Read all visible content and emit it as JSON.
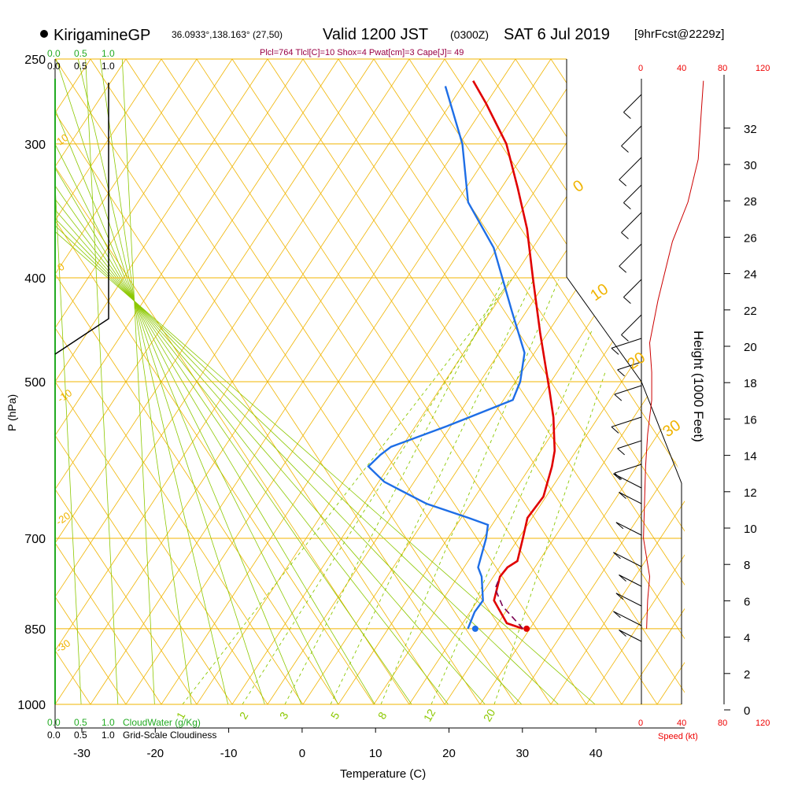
{
  "header": {
    "station": "KirigamineGP",
    "coords": "36.0933°,138.163° (27,50)",
    "valid_label": "Valid 1200 JST",
    "utc": "(0300Z)",
    "date": "SAT 6 Jul 2019",
    "forecast": "[9hrFcst@2229z]",
    "indices": "Plcl=764 Tlcl[C]=10 Shox=4 Pwat[cm]=3 Cape[J]= 49"
  },
  "colors": {
    "isobar": "#f0b400",
    "dry_adiabat": "#f0b400",
    "moist_adiabat": "#8cc800",
    "mixing_ratio": "#8cc800",
    "temperature": "#e00000",
    "dewpoint": "#1e6ee6",
    "parcel": "#7a0050",
    "wind_speed": "#cc0000",
    "cloudwater": "#22aa22",
    "indices": "#990044"
  },
  "chart_data": {
    "type": "line",
    "title": "Valid 1200 JST (0300Z) SAT 6 Jul 2019",
    "xlabel": "Temperature (C)",
    "ylabel": "P (hPa)",
    "y2label": "Height (1000 Feet)",
    "x_ticks": [
      "-30",
      "-20",
      "-10",
      "0",
      "10",
      "20",
      "30",
      "40"
    ],
    "y_ticks": [
      "250",
      "300",
      "400",
      "500",
      "700",
      "850",
      "1000"
    ],
    "height_ticks": [
      "32",
      "30",
      "28",
      "26",
      "24",
      "22",
      "20",
      "18",
      "16",
      "14",
      "12",
      "10",
      "8",
      "6",
      "4",
      "2",
      "0"
    ],
    "dry_adiabat_labels": [
      "10",
      "0",
      "-10",
      "-20",
      "-30",
      "0",
      "10",
      "20",
      "30"
    ],
    "mixing_ratio_labels": [
      "1",
      "2",
      "3",
      "5",
      "8",
      "12",
      "20"
    ],
    "cloud_scale_top": {
      "green": [
        "0.0",
        "0.5",
        "1.0"
      ],
      "black": [
        "0.0",
        "0.5",
        "1.0"
      ]
    },
    "cloud_scale_bottom": {
      "green": [
        "0.0",
        "0.5",
        "1.0"
      ],
      "black": [
        "0.0",
        "0.5",
        "1.0"
      ]
    },
    "cloudwater_label": "CloudWater (g/Kg)",
    "cloudiness_label": "Grid-Scale Cloudiness",
    "wind_speed_ticks": [
      "0",
      "40",
      "80",
      "120"
    ],
    "wind_speed_label": "Speed (kt)",
    "series": [
      {
        "name": "Temperature",
        "points": [
          [
            26.0,
            850
          ],
          [
            23.5,
            840
          ],
          [
            20.5,
            800
          ],
          [
            20.0,
            760
          ],
          [
            20.5,
            745
          ],
          [
            21.5,
            735
          ],
          [
            21.0,
            700
          ],
          [
            20.5,
            670
          ],
          [
            21.5,
            640
          ],
          [
            21.0,
            600
          ],
          [
            20.5,
            580
          ],
          [
            18.5,
            540
          ],
          [
            16.5,
            510
          ],
          [
            12.0,
            450
          ],
          [
            8.0,
            400
          ],
          [
            4.5,
            360
          ],
          [
            1.0,
            330
          ],
          [
            -3.0,
            300
          ],
          [
            -8.0,
            275
          ],
          [
            -11.0,
            262
          ]
        ]
      },
      {
        "name": "Dewpoint",
        "points": [
          [
            18.5,
            850
          ],
          [
            18.5,
            820
          ],
          [
            19.0,
            800
          ],
          [
            17.5,
            760
          ],
          [
            16.5,
            745
          ],
          [
            16.0,
            700
          ],
          [
            15.5,
            680
          ],
          [
            12.5,
            670
          ],
          [
            6.0,
            650
          ],
          [
            -1.0,
            620
          ],
          [
            -4.0,
            600
          ],
          [
            -3.0,
            585
          ],
          [
            -2.0,
            575
          ],
          [
            4.5,
            550
          ],
          [
            12.0,
            520
          ],
          [
            12.0,
            500
          ],
          [
            11.0,
            470
          ],
          [
            7.0,
            430
          ],
          [
            1.0,
            375
          ],
          [
            -5.0,
            340
          ],
          [
            -9.0,
            300
          ],
          [
            -14.5,
            265
          ]
        ]
      },
      {
        "name": "Parcel",
        "points": [
          [
            26.0,
            850
          ],
          [
            22.0,
            810
          ],
          [
            20.0,
            780
          ],
          [
            20.0,
            764
          ]
        ]
      },
      {
        "name": "Wind speed",
        "points": [
          [
            5,
            850
          ],
          [
            6,
            800
          ],
          [
            8,
            760
          ],
          [
            2,
            700
          ],
          [
            3,
            650
          ],
          [
            4,
            600
          ],
          [
            6,
            560
          ],
          [
            10,
            520
          ],
          [
            10,
            490
          ],
          [
            8,
            460
          ],
          [
            16,
            420
          ],
          [
            30,
            370
          ],
          [
            45,
            340
          ],
          [
            55,
            310
          ],
          [
            58,
            280
          ],
          [
            60,
            262
          ]
        ]
      }
    ],
    "surface": {
      "temperature": 26.5,
      "dewpoint": 19.5,
      "pressure": 850
    }
  }
}
